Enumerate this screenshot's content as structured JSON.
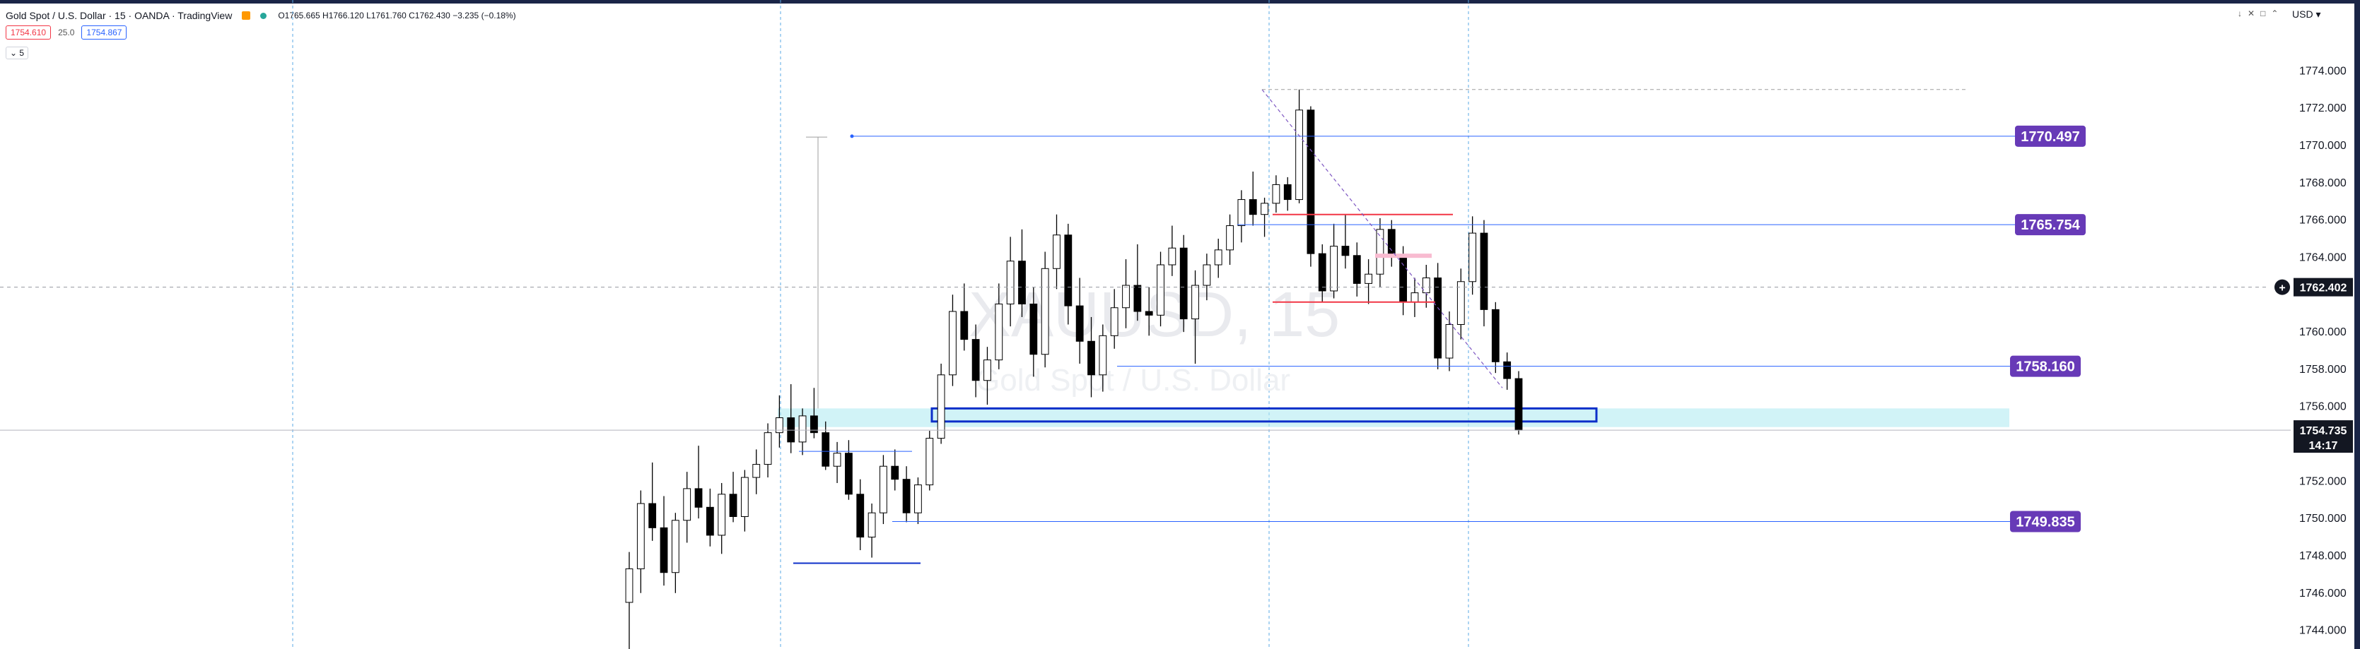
{
  "header": {
    "symbol": "Gold Spot / U.S. Dollar · 15 · OANDA · TradingView",
    "ohlc": "O1765.665 H1766.120 L1761.760 C1762.430 −3.235 (−0.18%)",
    "sell_price": "1754.610",
    "spread": "25.0",
    "buy_price": "1754.867",
    "indicator_toggle": "5",
    "currency": "USD"
  },
  "colors": {
    "up": "#ffffff",
    "down": "#000000",
    "level": "#2962ff",
    "label_bg": "#673ab7",
    "zone": "#b2ebf2",
    "box": "#0d2fc9",
    "red_line": "#f23645",
    "pink": "#f8bbd0"
  },
  "watermark": {
    "line1": "XAUUSD, 15",
    "line2": "Gold Spot / U.S. Dollar"
  },
  "chart_data": {
    "type": "candlestick",
    "ylim": [
      1743.0,
      1777.8
    ],
    "y_ticks": [
      {
        "value": 1774,
        "label": "1774.000"
      },
      {
        "value": 1772,
        "label": "1772.000"
      },
      {
        "value": 1770,
        "label": "1770.000"
      },
      {
        "value": 1768,
        "label": "1768.000"
      },
      {
        "value": 1766,
        "label": "1766.000"
      },
      {
        "value": 1764,
        "label": "1764.000"
      },
      {
        "value": 1760,
        "label": "1760.000"
      },
      {
        "value": 1758,
        "label": "1758.000"
      },
      {
        "value": 1756,
        "label": "1756.000"
      },
      {
        "value": 1752,
        "label": "1752.000"
      },
      {
        "value": 1750,
        "label": "1750.000"
      },
      {
        "value": 1748,
        "label": "1748.000"
      },
      {
        "value": 1746,
        "label": "1746.000"
      },
      {
        "value": 1744,
        "label": "1744.000"
      }
    ],
    "crosshair_price": {
      "value": 1762.402,
      "label": "1762.402"
    },
    "current_price": {
      "value": 1754.735,
      "label": "1754.735",
      "countdown": "14:17"
    },
    "levels": [
      {
        "value": 1770.497,
        "label": "1770.497"
      },
      {
        "value": 1765.754,
        "label": "1765.754"
      },
      {
        "value": 1758.16,
        "label": "1758.160"
      },
      {
        "value": 1749.835,
        "label": "1749.835"
      }
    ],
    "zone": [
      1754.9,
      1755.9
    ],
    "box": [
      1755.2,
      1755.9
    ],
    "candles": [
      [
        1745.5,
        1748.2,
        1742.5,
        1747.3
      ],
      [
        1747.3,
        1751.5,
        1746.0,
        1750.8
      ],
      [
        1750.8,
        1753.0,
        1748.8,
        1749.5
      ],
      [
        1749.5,
        1751.2,
        1746.4,
        1747.1
      ],
      [
        1747.1,
        1750.3,
        1746.0,
        1749.9
      ],
      [
        1749.9,
        1752.5,
        1748.7,
        1751.6
      ],
      [
        1751.6,
        1753.9,
        1750.0,
        1750.6
      ],
      [
        1750.6,
        1751.6,
        1748.5,
        1749.1
      ],
      [
        1749.1,
        1751.9,
        1748.1,
        1751.3
      ],
      [
        1751.3,
        1752.5,
        1749.8,
        1750.1
      ],
      [
        1750.1,
        1752.6,
        1749.3,
        1752.2
      ],
      [
        1752.2,
        1753.7,
        1751.3,
        1752.9
      ],
      [
        1752.9,
        1755.1,
        1752.2,
        1754.6
      ],
      [
        1754.6,
        1756.6,
        1753.8,
        1755.4
      ],
      [
        1755.4,
        1757.2,
        1753.5,
        1754.1
      ],
      [
        1754.1,
        1755.9,
        1753.4,
        1755.5
      ],
      [
        1755.5,
        1757.0,
        1754.3,
        1754.6
      ],
      [
        1754.6,
        1755.2,
        1752.6,
        1752.8
      ],
      [
        1752.8,
        1754.1,
        1751.9,
        1753.5
      ],
      [
        1753.5,
        1754.2,
        1751.0,
        1751.3
      ],
      [
        1751.3,
        1752.1,
        1748.3,
        1749.0
      ],
      [
        1749.0,
        1750.8,
        1747.9,
        1750.3
      ],
      [
        1750.3,
        1753.4,
        1749.7,
        1752.8
      ],
      [
        1752.8,
        1753.7,
        1751.5,
        1752.1
      ],
      [
        1752.1,
        1752.8,
        1749.8,
        1750.3
      ],
      [
        1750.3,
        1752.2,
        1749.7,
        1751.8
      ],
      [
        1751.8,
        1754.7,
        1751.5,
        1754.3
      ],
      [
        1754.3,
        1758.3,
        1754.0,
        1757.7
      ],
      [
        1757.7,
        1762.0,
        1757.1,
        1761.1
      ],
      [
        1761.1,
        1762.6,
        1759.0,
        1759.6
      ],
      [
        1759.6,
        1760.4,
        1756.5,
        1757.4
      ],
      [
        1757.4,
        1759.2,
        1756.1,
        1758.5
      ],
      [
        1758.5,
        1762.6,
        1758.0,
        1761.5
      ],
      [
        1761.5,
        1765.1,
        1760.3,
        1763.8
      ],
      [
        1763.8,
        1765.5,
        1760.8,
        1761.5
      ],
      [
        1761.5,
        1762.4,
        1757.6,
        1758.8
      ],
      [
        1758.8,
        1764.3,
        1758.1,
        1763.4
      ],
      [
        1763.4,
        1766.3,
        1762.3,
        1765.2
      ],
      [
        1765.2,
        1765.8,
        1760.4,
        1761.4
      ],
      [
        1761.4,
        1762.9,
        1758.3,
        1759.5
      ],
      [
        1759.5,
        1760.8,
        1756.5,
        1757.7
      ],
      [
        1757.7,
        1760.4,
        1756.8,
        1759.8
      ],
      [
        1759.8,
        1762.3,
        1759.1,
        1761.3
      ],
      [
        1761.3,
        1763.9,
        1760.2,
        1762.5
      ],
      [
        1762.5,
        1764.7,
        1760.6,
        1761.1
      ],
      [
        1761.1,
        1762.4,
        1759.8,
        1760.9
      ],
      [
        1760.9,
        1764.3,
        1760.3,
        1763.6
      ],
      [
        1763.6,
        1765.7,
        1763.0,
        1764.5
      ],
      [
        1764.5,
        1765.2,
        1760.0,
        1760.7
      ],
      [
        1760.7,
        1763.3,
        1758.3,
        1762.5
      ],
      [
        1762.5,
        1764.2,
        1761.7,
        1763.6
      ],
      [
        1763.6,
        1765.0,
        1762.9,
        1764.4
      ],
      [
        1764.4,
        1766.3,
        1763.6,
        1765.7
      ],
      [
        1765.7,
        1767.6,
        1764.8,
        1767.1
      ],
      [
        1767.1,
        1768.6,
        1765.7,
        1766.3
      ],
      [
        1766.3,
        1767.2,
        1765.1,
        1766.9
      ],
      [
        1766.9,
        1768.4,
        1766.4,
        1767.9
      ],
      [
        1767.9,
        1768.3,
        1766.5,
        1767.1
      ],
      [
        1767.1,
        1773.0,
        1766.9,
        1771.9
      ],
      [
        1771.9,
        1772.1,
        1763.5,
        1764.2
      ],
      [
        1764.2,
        1764.7,
        1761.6,
        1762.2
      ],
      [
        1762.2,
        1765.8,
        1761.8,
        1764.6
      ],
      [
        1764.6,
        1766.3,
        1763.4,
        1764.1
      ],
      [
        1764.1,
        1764.8,
        1761.9,
        1762.6
      ],
      [
        1762.6,
        1763.9,
        1761.5,
        1763.1
      ],
      [
        1763.1,
        1766.1,
        1762.4,
        1765.5
      ],
      [
        1765.5,
        1766.0,
        1763.5,
        1764.1
      ],
      [
        1764.1,
        1764.6,
        1760.9,
        1761.6
      ],
      [
        1761.6,
        1762.9,
        1760.8,
        1762.1
      ],
      [
        1762.1,
        1763.6,
        1761.3,
        1762.9
      ],
      [
        1762.9,
        1763.7,
        1758.0,
        1758.6
      ],
      [
        1758.6,
        1761.1,
        1757.9,
        1760.4
      ],
      [
        1760.4,
        1763.4,
        1759.6,
        1762.7
      ],
      [
        1762.7,
        1766.2,
        1762.0,
        1765.3
      ],
      [
        1765.3,
        1766.0,
        1760.3,
        1761.2
      ],
      [
        1761.2,
        1761.6,
        1757.8,
        1758.4
      ],
      [
        1758.4,
        1758.9,
        1756.9,
        1757.5
      ],
      [
        1757.5,
        1757.9,
        1754.5,
        1754.735
      ]
    ]
  }
}
